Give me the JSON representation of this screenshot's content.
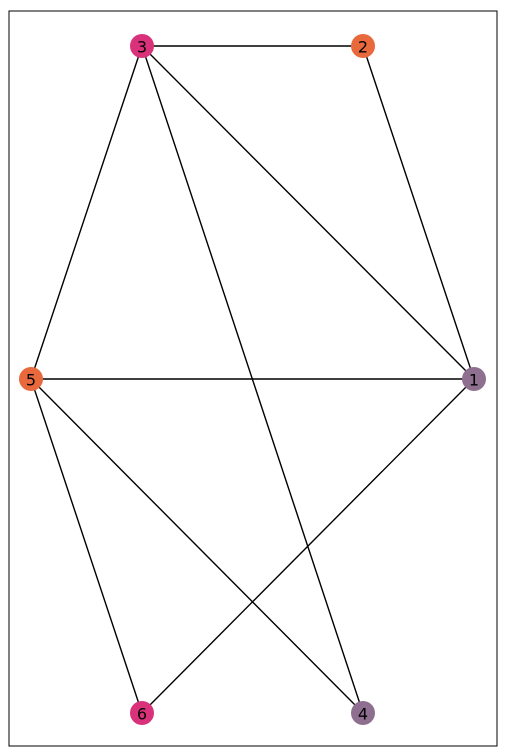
{
  "graph": {
    "title": "",
    "nodes": [
      {
        "id": "1",
        "label": "1",
        "color": "#8e6f8f"
      },
      {
        "id": "2",
        "label": "2",
        "color": "#e8693c"
      },
      {
        "id": "3",
        "label": "3",
        "color": "#d9327a"
      },
      {
        "id": "4",
        "label": "4",
        "color": "#8e6f8f"
      },
      {
        "id": "5",
        "label": "5",
        "color": "#e8693c"
      },
      {
        "id": "6",
        "label": "6",
        "color": "#d9327a"
      }
    ],
    "edges": [
      {
        "source": "3",
        "target": "2"
      },
      {
        "source": "3",
        "target": "5"
      },
      {
        "source": "3",
        "target": "1"
      },
      {
        "source": "3",
        "target": "4"
      },
      {
        "source": "2",
        "target": "1"
      },
      {
        "source": "5",
        "target": "1"
      },
      {
        "source": "5",
        "target": "6"
      },
      {
        "source": "5",
        "target": "4"
      },
      {
        "source": "1",
        "target": "6"
      }
    ],
    "frame_color": "#000000",
    "edge_color": "#000000"
  }
}
